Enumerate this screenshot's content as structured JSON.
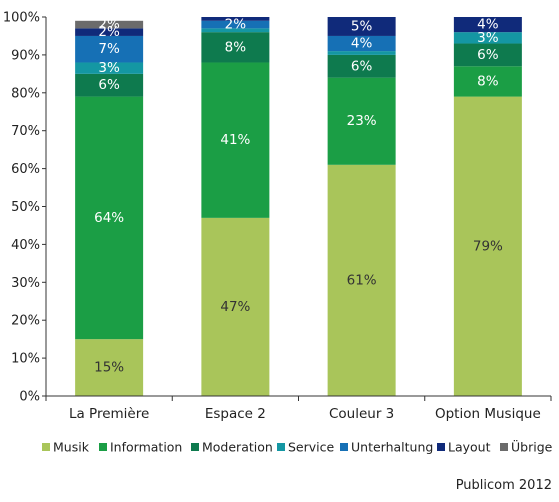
{
  "chart_data": {
    "type": "bar",
    "stacked": true,
    "categories": [
      "La Première",
      "Espace 2",
      "Couleur 3",
      "Option Musique"
    ],
    "series": [
      {
        "name": "Musik",
        "color": "#a9c55a",
        "values": [
          15,
          47,
          61,
          79
        ],
        "labels": [
          "15%",
          "47%",
          "61%",
          "79%"
        ]
      },
      {
        "name": "Information",
        "color": "#1b9e45",
        "values": [
          64,
          41,
          23,
          8
        ],
        "labels": [
          "64%",
          "41%",
          "23%",
          "8%"
        ]
      },
      {
        "name": "Moderation",
        "color": "#0e7a4e",
        "values": [
          6,
          8,
          6,
          6
        ],
        "labels": [
          "6%",
          "8%",
          "6%",
          "6%"
        ]
      },
      {
        "name": "Service",
        "color": "#1497a3",
        "values": [
          3,
          1,
          1,
          3
        ],
        "labels": [
          "3%",
          "",
          "",
          "3%"
        ]
      },
      {
        "name": "Unterhaltung",
        "color": "#1670b5",
        "values": [
          7,
          2,
          4,
          0
        ],
        "labels": [
          "7%",
          "2%",
          "4%",
          ""
        ]
      },
      {
        "name": "Layout",
        "color": "#102a7a",
        "values": [
          2,
          1,
          5,
          4
        ],
        "labels": [
          "2%",
          "",
          "5%",
          "4%"
        ]
      },
      {
        "name": "Übrige",
        "color": "#6b6b6b",
        "values": [
          2,
          0,
          0,
          0
        ],
        "labels": [
          "2%",
          "",
          "",
          ""
        ]
      }
    ],
    "yticks": [
      "0%",
      "10%",
      "20%",
      "30%",
      "40%",
      "50%",
      "60%",
      "70%",
      "80%",
      "90%",
      "100%"
    ],
    "ylim": [
      0,
      100
    ],
    "grid": false,
    "legend_position": "bottom"
  },
  "source": "Publicom 2012"
}
